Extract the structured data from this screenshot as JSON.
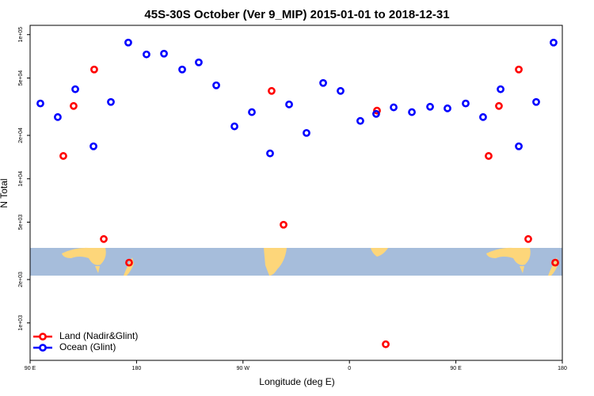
{
  "chart_data": {
    "type": "scatter",
    "title": "45S-30S October (Ver 9_MIP)   2015-01-01 to 2018-12-31",
    "x_label": "Longitude (deg E)",
    "y_label": "N Total",
    "xlim": [
      90,
      540
    ],
    "xticks": [
      {
        "value": 90,
        "label": "90 E"
      },
      180,
      {
        "value": 270,
        "label": "90 W"
      },
      {
        "value": 360,
        "label": "0"
      },
      {
        "value": 450,
        "label": "90 E"
      },
      {
        "value": 540,
        "label": "180"
      }
    ],
    "ylim": [
      550,
      116000
    ],
    "ylog": true,
    "yticks": [
      {
        "value": 1000,
        "label": "1e+03"
      },
      {
        "value": 2000,
        "label": "2e+03"
      },
      {
        "value": 5000,
        "label": "5e+03"
      },
      {
        "value": 10000,
        "label": "1e+04"
      },
      {
        "value": 20000,
        "label": "2e+04"
      },
      {
        "value": 50000,
        "label": "5e+04"
      },
      {
        "value": 100000,
        "label": "1e+05"
      }
    ],
    "legend": "bottom-left",
    "series": [
      {
        "name": "Land (Nadir&Glint)",
        "color": "#ff0000",
        "x": [
          118.1,
          126.8,
          144.2,
          152.3,
          173.7,
          294.2,
          304.3,
          383.3,
          390.7,
          477.7,
          486.4,
          503.2,
          511.2,
          534
        ],
        "values": [
          14400,
          32000,
          57300,
          3820,
          2620,
          40700,
          4800,
          29700,
          711,
          14400,
          32000,
          57300,
          3820,
          2620
        ]
      },
      {
        "name": "Ocean (Glint)",
        "color": "#0000ff",
        "x": [
          98.7,
          113.4,
          128.2,
          143.6,
          158.3,
          173,
          188.4,
          203.2,
          218.6,
          232.6,
          247.4,
          262.8,
          277.5,
          292.9,
          309,
          323.7,
          337.8,
          352.5,
          369.2,
          382.6,
          397.4,
          412.8,
          428.2,
          442.9,
          458.3,
          473,
          487.8,
          503.2,
          517.9,
          532.6
        ],
        "values": [
          33300,
          26800,
          41800,
          16800,
          34100,
          88100,
          72900,
          73800,
          57300,
          64200,
          44500,
          23100,
          29000,
          15000,
          32800,
          20800,
          46200,
          40700,
          25200,
          28200,
          31300,
          29000,
          31600,
          30800,
          33300,
          26800,
          41800,
          16800,
          34100,
          88100
        ]
      }
    ]
  }
}
